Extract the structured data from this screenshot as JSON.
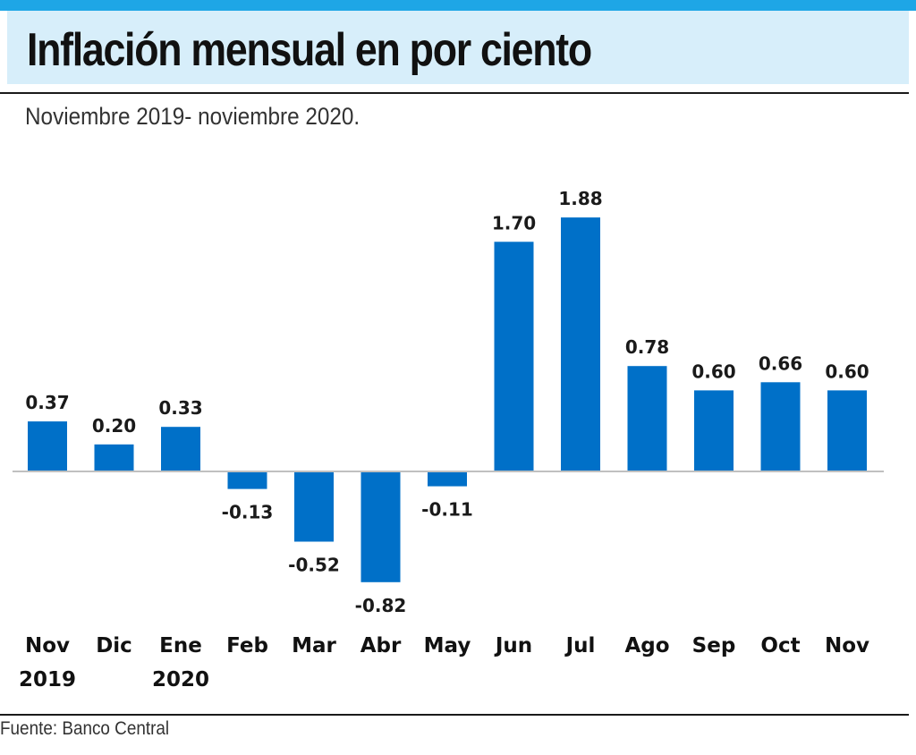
{
  "header": {
    "title": "Inflación mensual en por ciento",
    "subtitle": "Noviembre 2019- noviembre 2020."
  },
  "footer": {
    "source": "Fuente: Banco Central"
  },
  "colors": {
    "bar": "#0070c8",
    "accent": "#1ea6e6",
    "title_band": "#d7eefa",
    "baseline": "#c0c0c0"
  },
  "chart_data": {
    "type": "bar",
    "title": "Inflación mensual en por ciento",
    "subtitle": "Noviembre 2019- noviembre 2020.",
    "categories": [
      [
        "Nov",
        "2019"
      ],
      [
        "Dic"
      ],
      [
        "Ene",
        "2020"
      ],
      [
        "Feb"
      ],
      [
        "Mar"
      ],
      [
        "Abr"
      ],
      [
        "May"
      ],
      [
        "Jun"
      ],
      [
        "Jul"
      ],
      [
        "Ago"
      ],
      [
        "Sep"
      ],
      [
        "Oct"
      ],
      [
        "Nov"
      ]
    ],
    "values": [
      0.37,
      0.2,
      0.33,
      -0.13,
      -0.52,
      -0.82,
      -0.11,
      1.7,
      1.88,
      0.78,
      0.6,
      0.66,
      0.6
    ],
    "value_labels": [
      "0.37",
      "0.20",
      "0.33",
      "-0.13",
      "-0.52",
      "-0.82",
      "-0.11",
      "1.70",
      "1.88",
      "0.78",
      "0.60",
      "0.66",
      "0.60"
    ],
    "xlabel": "",
    "ylabel": "",
    "grid": false,
    "legend": "none"
  }
}
